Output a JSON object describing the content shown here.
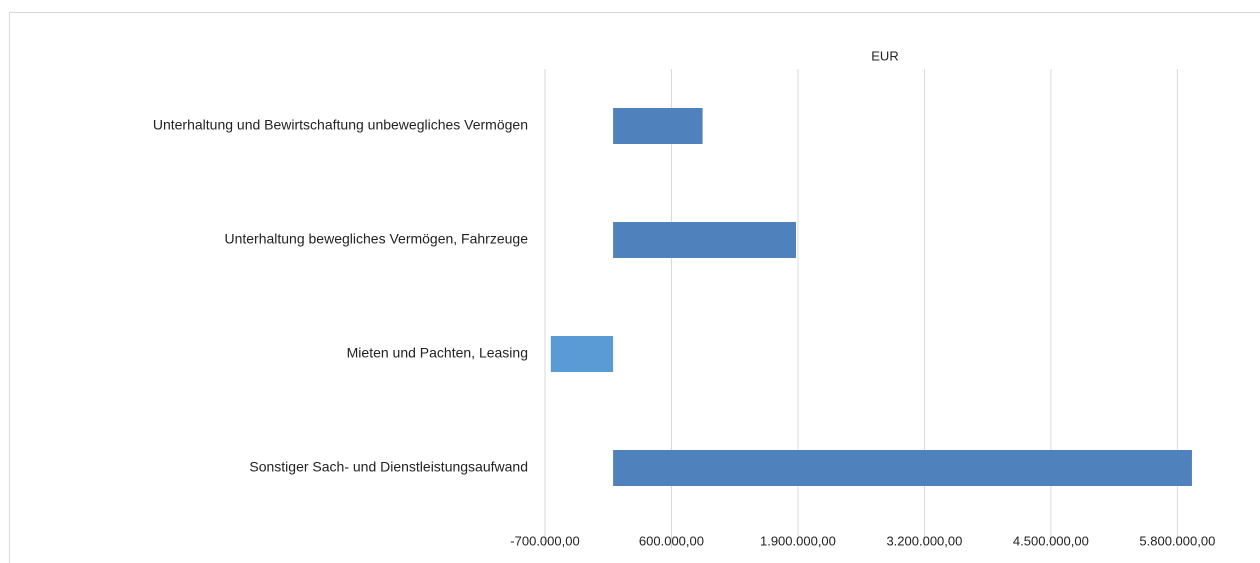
{
  "chart_data": {
    "type": "hbar",
    "title": "EUR",
    "categories": [
      "Unterhaltung und Bewirtschaftung unbewegliches Vermögen",
      "Unterhaltung bewegliches Vermögen, Fahrzeuge",
      "Mieten und Pachten, Leasing",
      "Sonstiger Sach- und Dienstleistungsaufwand"
    ],
    "values": [
      920000,
      1880000,
      -640000,
      5950000
    ],
    "color": "#4f81bd",
    "negative_color": "#5b9bd5",
    "xlim": [
      -700000,
      6300000
    ],
    "xticks": [
      {
        "value": -700000,
        "label": "-700.000,00"
      },
      {
        "value": 600000,
        "label": "600.000,00"
      },
      {
        "value": 1900000,
        "label": "1.900.000,00"
      },
      {
        "value": 3200000,
        "label": "3.200.000,00"
      },
      {
        "value": 4500000,
        "label": "4.500.000,00"
      },
      {
        "value": 5800000,
        "label": "5.800.000,00"
      }
    ],
    "grid": true
  }
}
